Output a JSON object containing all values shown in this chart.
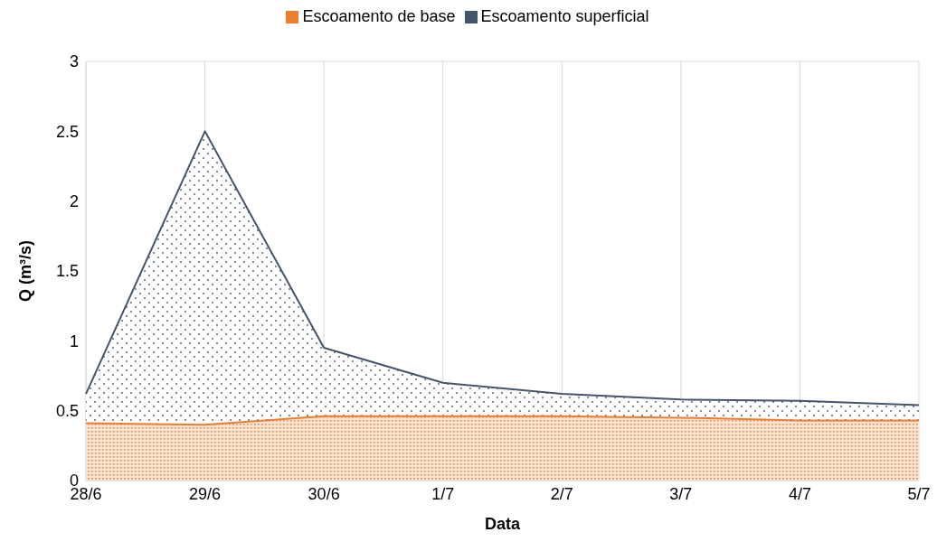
{
  "chart_data": {
    "type": "area",
    "xlabel": "Data",
    "ylabel": "Q (m³/s)",
    "categories": [
      "28/6",
      "29/6",
      "30/6",
      "1/7",
      "2/7",
      "3/7",
      "4/7",
      "5/7"
    ],
    "series": [
      {
        "name": "Escoamento superficial",
        "color": "#44546a",
        "values": [
          0.62,
          2.5,
          0.95,
          0.7,
          0.62,
          0.58,
          0.57,
          0.54
        ]
      },
      {
        "name": "Escoamento de base",
        "color": "#ed7d31",
        "values": [
          0.41,
          0.4,
          0.46,
          0.46,
          0.46,
          0.45,
          0.43,
          0.43
        ]
      }
    ],
    "ylim": [
      0,
      3
    ],
    "yticks": [
      0,
      0.5,
      1,
      1.5,
      2,
      2.5,
      3
    ],
    "grid": true,
    "legend": "top"
  }
}
